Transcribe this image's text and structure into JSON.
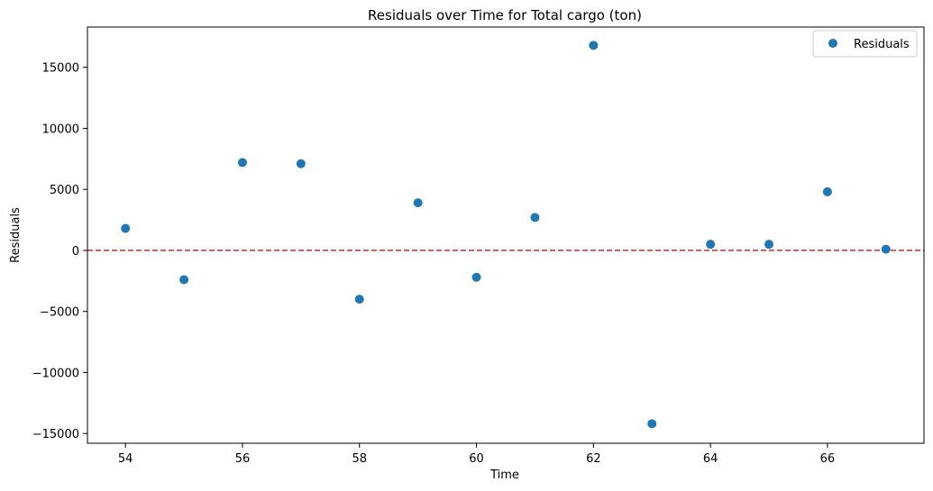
{
  "chart_data": {
    "type": "scatter",
    "title": "Residuals over Time for Total cargo (ton)",
    "xlabel": "Time",
    "ylabel": "Residuals",
    "xlim": [
      53.35,
      67.65
    ],
    "ylim": [
      -15800,
      18300
    ],
    "x_ticks": [
      54,
      56,
      58,
      60,
      62,
      64,
      66
    ],
    "y_ticks": [
      -15000,
      -10000,
      -5000,
      0,
      5000,
      10000,
      15000
    ],
    "grid": false,
    "legend_position": "top-right",
    "series": [
      {
        "name": "Residuals",
        "color": "#1f77b4",
        "x": [
          54,
          55,
          56,
          57,
          58,
          59,
          60,
          61,
          62,
          63,
          64,
          65,
          66,
          67
        ],
        "y": [
          1800,
          -2400,
          7200,
          7100,
          -4000,
          3900,
          -2200,
          2700,
          16800,
          -14200,
          500,
          500,
          4800,
          100
        ]
      }
    ],
    "reference_line": {
      "y": 0,
      "color": "#d62728",
      "style": "dashed"
    }
  }
}
